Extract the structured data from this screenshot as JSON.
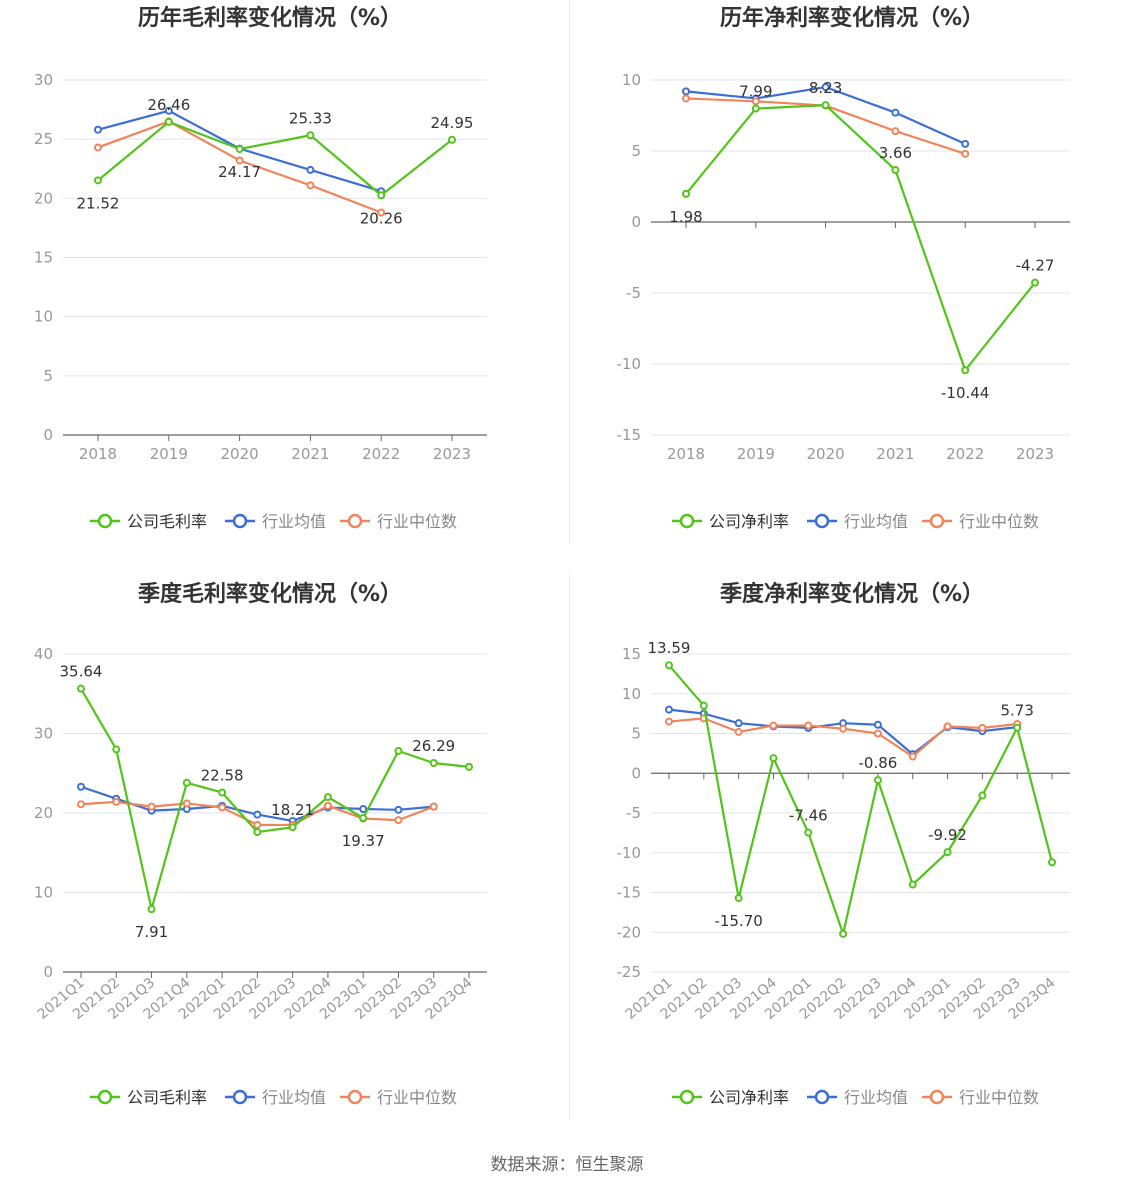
{
  "source": "数据来源：恒生聚源",
  "colors": {
    "company": "#52c41a",
    "avg": "#3b6fd6",
    "median": "#f0845a",
    "axis": "#666666",
    "grid": "#e0e3ec",
    "tick": "#999999",
    "title": "#333333"
  },
  "chart_data": [
    {
      "type": "line",
      "title": "历年毛利率变化情况（%）",
      "categories": [
        "2018",
        "2019",
        "2020",
        "2021",
        "2022",
        "2023"
      ],
      "ylim": [
        0,
        30
      ],
      "yticks": [
        0,
        5,
        10,
        15,
        20,
        25,
        30
      ],
      "legend": "bottom",
      "series": [
        {
          "name": "公司毛利率",
          "values": [
            21.52,
            26.46,
            24.17,
            25.33,
            20.26,
            24.95
          ],
          "labels": [
            "21.52",
            "26.46",
            "24.17",
            "25.33",
            "20.26",
            "24.95"
          ]
        },
        {
          "name": "行业均值",
          "values": [
            25.8,
            27.4,
            24.2,
            22.4,
            20.6,
            null
          ]
        },
        {
          "name": "行业中位数",
          "values": [
            24.3,
            26.5,
            23.2,
            21.1,
            18.8,
            null
          ]
        }
      ]
    },
    {
      "type": "line",
      "title": "历年净利率变化情况（%）",
      "categories": [
        "2018",
        "2019",
        "2020",
        "2021",
        "2022",
        "2023"
      ],
      "ylim": [
        -15,
        10
      ],
      "yticks": [
        -15,
        -10,
        -5,
        0,
        5,
        10
      ],
      "legend": "bottom",
      "series": [
        {
          "name": "公司净利率",
          "values": [
            1.98,
            7.99,
            8.23,
            3.66,
            -10.44,
            -4.27
          ],
          "labels": [
            "1.98",
            "7.99",
            "8.23",
            "3.66",
            "-10.44",
            "-4.27"
          ]
        },
        {
          "name": "行业均值",
          "values": [
            9.2,
            8.7,
            9.5,
            7.7,
            5.5,
            null
          ]
        },
        {
          "name": "行业中位数",
          "values": [
            8.7,
            8.5,
            8.2,
            6.4,
            4.8,
            null
          ]
        }
      ]
    },
    {
      "type": "line",
      "title": "季度毛利率变化情况（%）",
      "categories": [
        "2021Q1",
        "2021Q2",
        "2021Q3",
        "2021Q4",
        "2022Q1",
        "2022Q2",
        "2022Q3",
        "2022Q4",
        "2023Q1",
        "2023Q2",
        "2023Q3",
        "2023Q4"
      ],
      "ylim": [
        0,
        40
      ],
      "yticks": [
        0,
        10,
        20,
        30,
        40
      ],
      "legend": "bottom",
      "series": [
        {
          "name": "公司毛利率",
          "values": [
            35.64,
            28.0,
            7.91,
            23.8,
            22.58,
            17.6,
            18.21,
            22.0,
            19.37,
            27.8,
            26.29,
            25.8
          ],
          "labels": [
            "35.64",
            "",
            "7.91",
            "",
            "22.58",
            "",
            "18.21",
            "",
            "19.37",
            "",
            "26.29",
            ""
          ]
        },
        {
          "name": "行业均值",
          "values": [
            23.3,
            21.8,
            20.3,
            20.5,
            20.9,
            19.8,
            19.0,
            20.7,
            20.5,
            20.4,
            20.8,
            null
          ]
        },
        {
          "name": "行业中位数",
          "values": [
            21.1,
            21.4,
            20.8,
            21.2,
            20.7,
            18.5,
            18.5,
            20.9,
            19.3,
            19.1,
            20.8,
            null
          ]
        }
      ]
    },
    {
      "type": "line",
      "title": "季度净利率变化情况（%）",
      "categories": [
        "2021Q1",
        "2021Q2",
        "2021Q3",
        "2021Q4",
        "2022Q1",
        "2022Q2",
        "2022Q3",
        "2022Q4",
        "2023Q1",
        "2023Q2",
        "2023Q3",
        "2023Q4"
      ],
      "ylim": [
        -25,
        15
      ],
      "yticks": [
        -25,
        -20,
        -15,
        -10,
        -5,
        0,
        5,
        10,
        15
      ],
      "legend": "bottom",
      "series": [
        {
          "name": "公司净利率",
          "values": [
            13.59,
            8.5,
            -15.7,
            1.9,
            -7.46,
            -20.2,
            -0.86,
            -14.0,
            -9.92,
            -2.8,
            5.73,
            -11.2
          ],
          "labels": [
            "13.59",
            "",
            "-15.70",
            "",
            "-7.46",
            "",
            "-0.86",
            "",
            "-9.92",
            "",
            "5.73",
            ""
          ]
        },
        {
          "name": "行业均值",
          "values": [
            8.0,
            7.5,
            6.3,
            5.9,
            5.7,
            6.3,
            6.1,
            2.4,
            5.8,
            5.3,
            5.8,
            null
          ]
        },
        {
          "name": "行业中位数",
          "values": [
            6.5,
            6.9,
            5.2,
            6.0,
            6.0,
            5.6,
            5.0,
            2.1,
            5.9,
            5.7,
            6.2,
            null
          ]
        }
      ]
    }
  ]
}
